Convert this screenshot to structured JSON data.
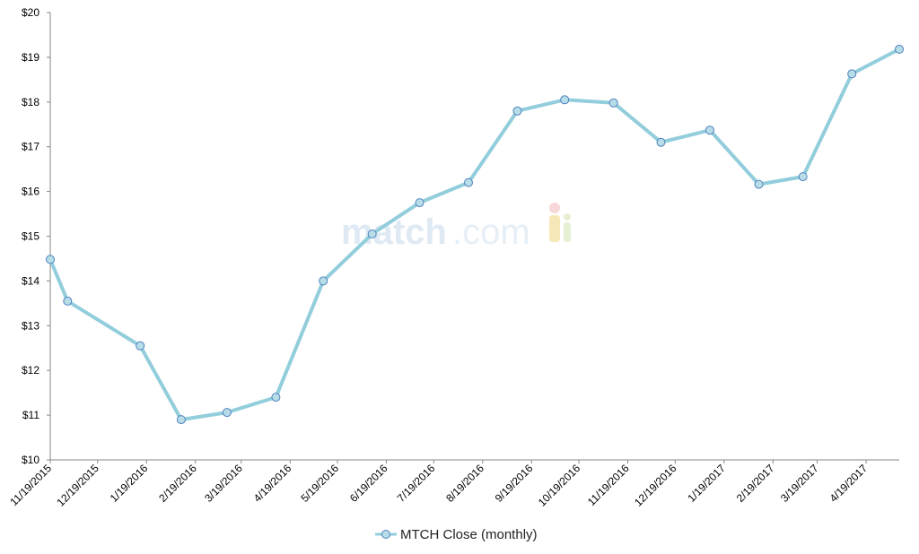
{
  "watermark": {
    "part1": "match",
    "part2": ".com"
  },
  "chart_data": {
    "type": "line",
    "title": "",
    "xlabel": "",
    "ylabel": "",
    "ylim": [
      10,
      20
    ],
    "y_tick_labels": [
      "$10",
      "$11",
      "$12",
      "$13",
      "$14",
      "$15",
      "$16",
      "$17",
      "$18",
      "$19",
      "$20"
    ],
    "x_tick_labels": [
      "11/19/2015",
      "12/19/2015",
      "1/19/2016",
      "2/19/2016",
      "3/19/2016",
      "4/19/2016",
      "5/19/2016",
      "6/19/2016",
      "7/19/2016",
      "8/19/2016",
      "9/19/2016",
      "10/19/2016",
      "11/19/2016",
      "12/19/2016",
      "1/19/2017",
      "2/19/2017",
      "3/19/2017",
      "4/19/2017"
    ],
    "grid": false,
    "legend_position": "bottom-center",
    "line_color": "#92cddc",
    "marker_fill": "#b7dde8",
    "marker_stroke": "#4f81bd",
    "series": [
      {
        "name": "MTCH Close (monthly)",
        "points": [
          {
            "x": "11/19/2015",
            "y": 14.48
          },
          {
            "x": "11/30/2015",
            "y": 13.55
          },
          {
            "x": "1/15/2016",
            "y": 12.55
          },
          {
            "x": "2/10/2016",
            "y": 10.9
          },
          {
            "x": "3/10/2016",
            "y": 11.06
          },
          {
            "x": "4/10/2016",
            "y": 11.4
          },
          {
            "x": "5/10/2016",
            "y": 14.0
          },
          {
            "x": "6/10/2016",
            "y": 15.05
          },
          {
            "x": "7/10/2016",
            "y": 15.75
          },
          {
            "x": "8/10/2016",
            "y": 16.2
          },
          {
            "x": "9/10/2016",
            "y": 17.8
          },
          {
            "x": "10/10/2016",
            "y": 18.05
          },
          {
            "x": "11/10/2016",
            "y": 17.98
          },
          {
            "x": "12/10/2016",
            "y": 17.1
          },
          {
            "x": "1/10/2017",
            "y": 17.37
          },
          {
            "x": "2/10/2017",
            "y": 16.16
          },
          {
            "x": "3/10/2017",
            "y": 16.33
          },
          {
            "x": "4/10/2017",
            "y": 18.63
          },
          {
            "x": "5/10/2017",
            "y": 19.18
          }
        ]
      }
    ]
  }
}
